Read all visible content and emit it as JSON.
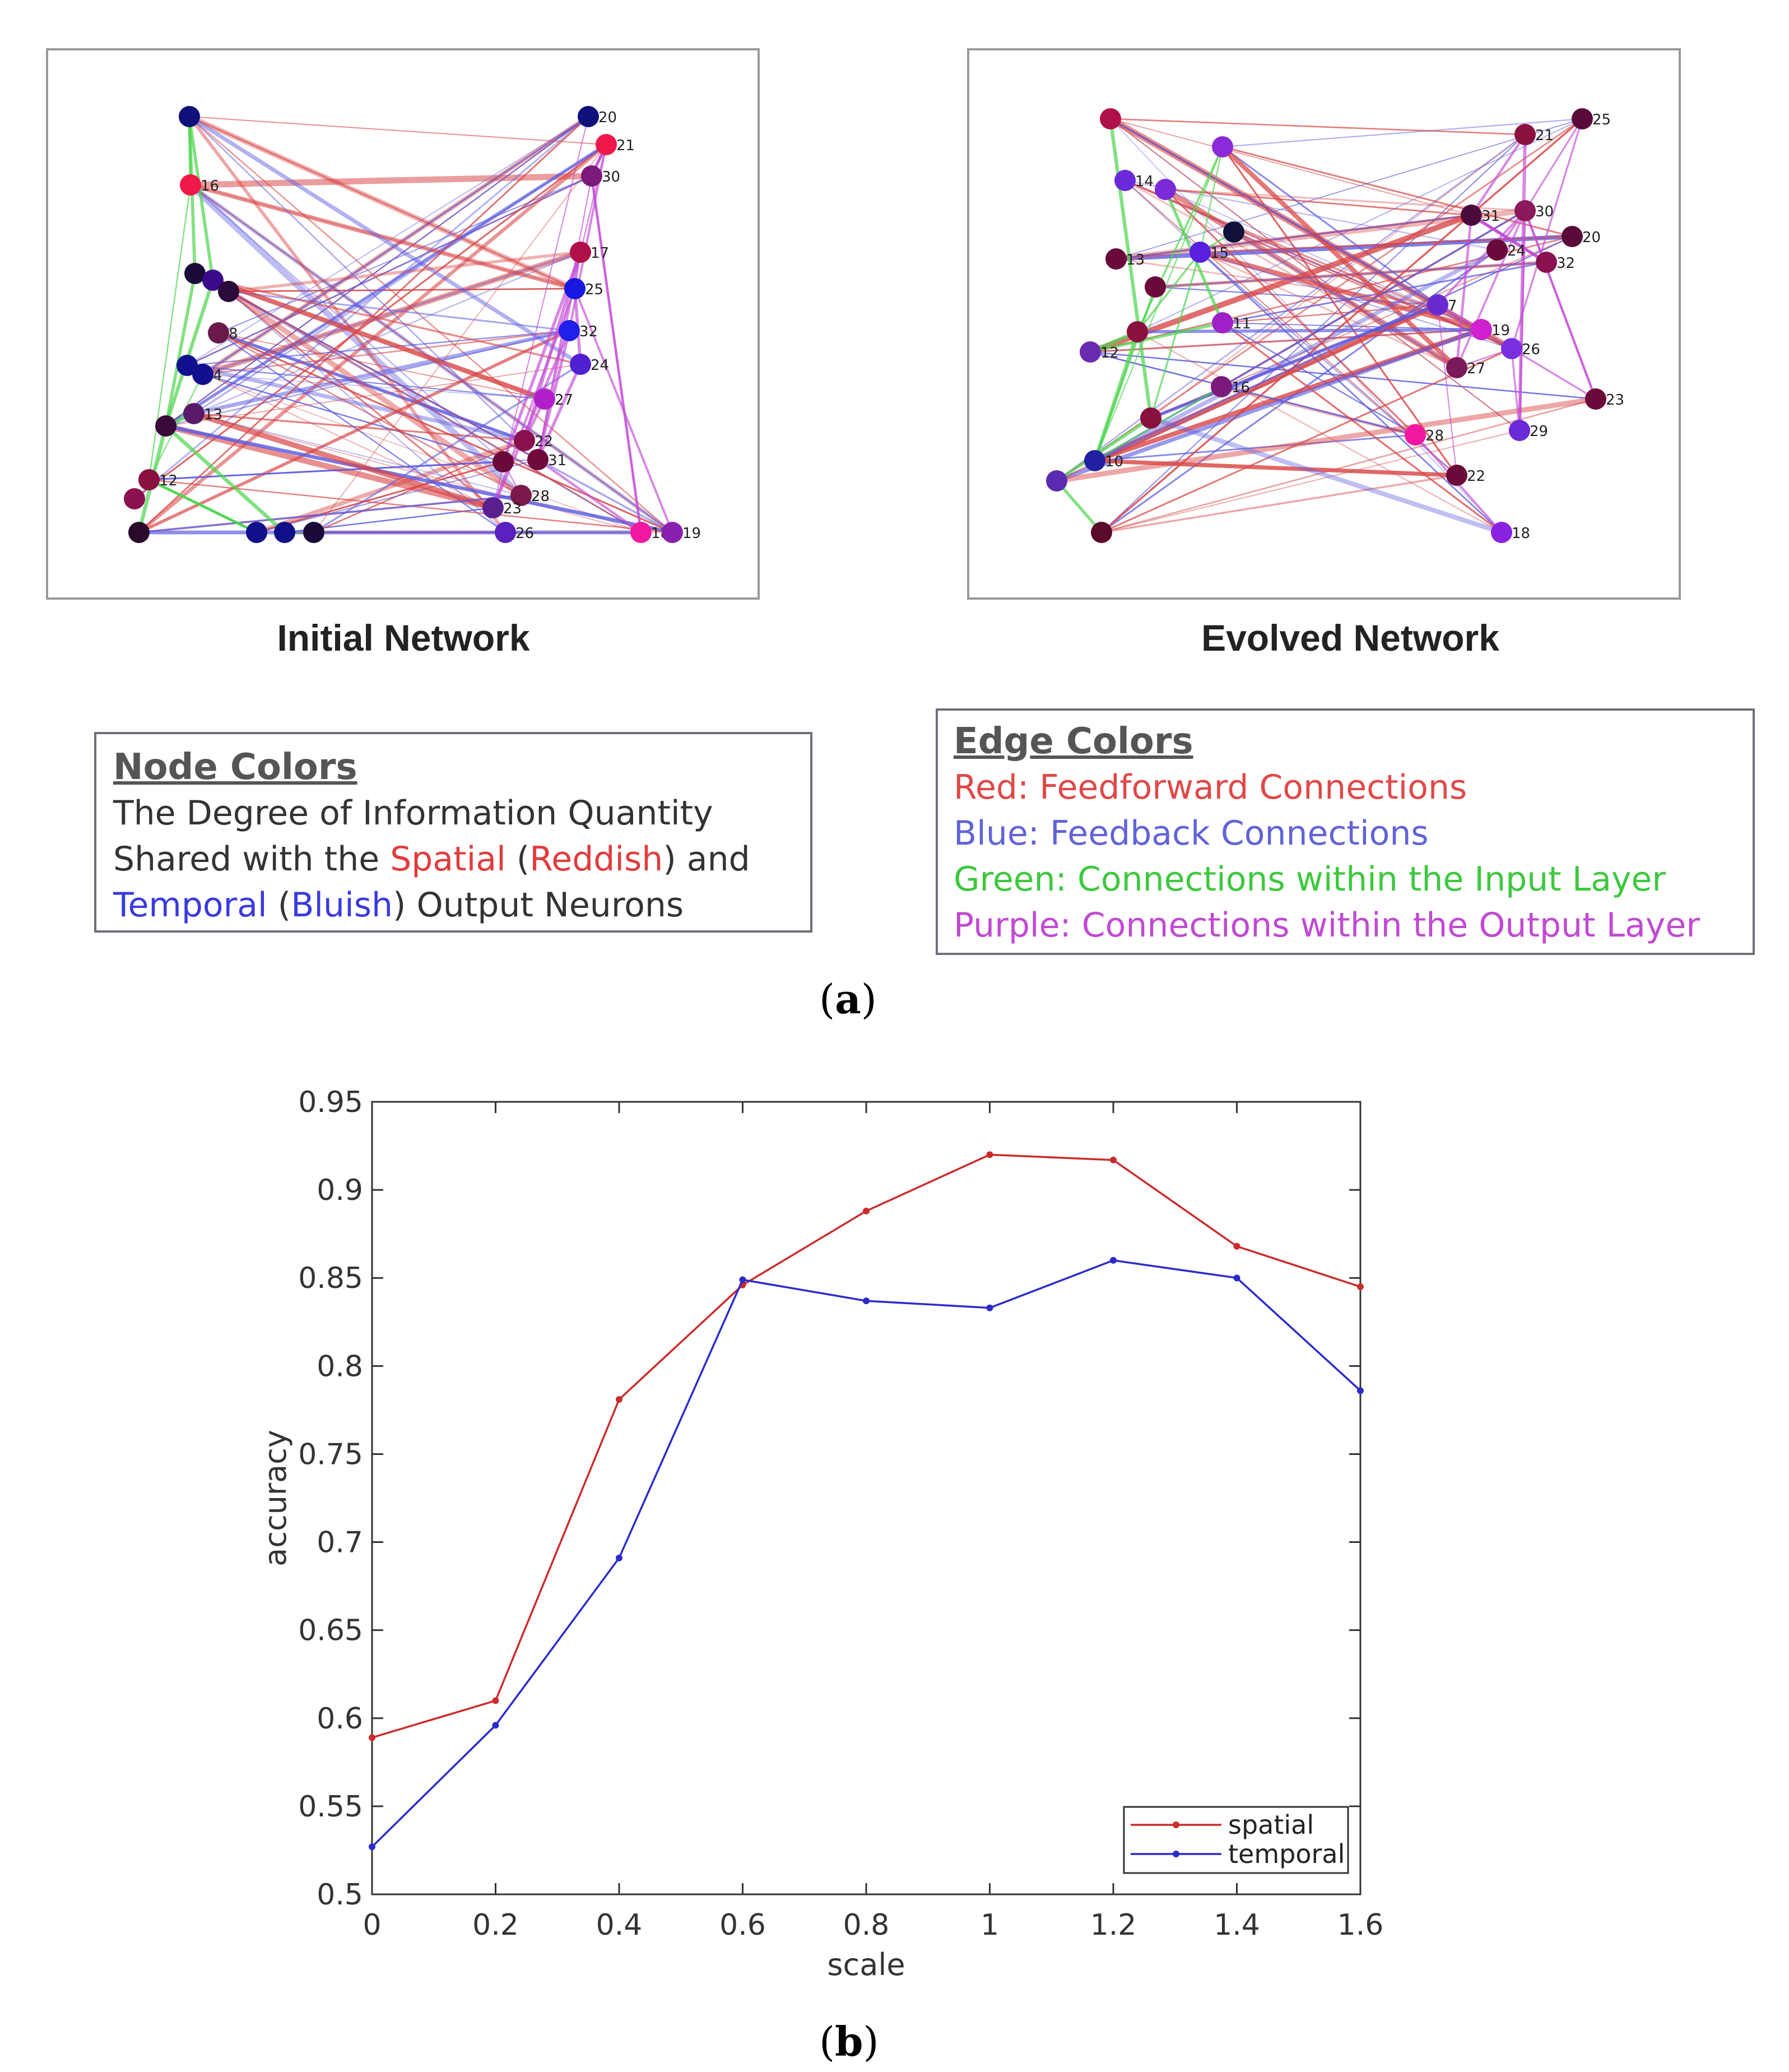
{
  "panel_a": {
    "initial_title": "Initial Network",
    "evolved_title": "Evolved Network",
    "label_open": "(",
    "label_letter": "a",
    "label_close": ")",
    "node_legend": {
      "heading": "Node Colors",
      "line1": "The Degree of Information Quantity",
      "line2_pre": "Shared with the ",
      "spatial": "Spatial",
      "line2_mid": " (",
      "reddish": "Reddish",
      "line2_post": ") and",
      "temporal": "Temporal",
      "line3_mid": " (",
      "bluish": "Bluish",
      "line3_post": ") Output Neurons"
    },
    "edge_legend": {
      "heading": "Edge Colors",
      "red": "Red: Feedforward Connections",
      "blue": "Blue: Feedback Connections",
      "green": "Green: Connections within the Input Layer",
      "purple": "Purple: Connections within the Output Layer"
    },
    "colors": {
      "feedforward": "#d94545",
      "feedback": "#5a5ae0",
      "input_layer": "#4dd44d",
      "output_layer": "#c24ad4",
      "spatial_text": "#e03c3c",
      "temporal_text": "#3a3ae0"
    },
    "initial_node_labels": [
      "20",
      "21",
      "16",
      "30",
      "17",
      "25",
      "32",
      "24",
      "27",
      "22",
      "31",
      "28",
      "23",
      "26",
      "18",
      "19",
      "12",
      "4",
      "13",
      "8"
    ],
    "evolved_node_labels": [
      "25",
      "21",
      "14",
      "30",
      "31",
      "20",
      "24",
      "32",
      "13",
      "7",
      "19",
      "26",
      "27",
      "11",
      "12",
      "23",
      "29",
      "28",
      "22",
      "10",
      "18",
      "16"
    ]
  },
  "panel_b": {
    "label_open": "(",
    "label_letter": "b",
    "label_close": ")"
  },
  "chart_data": {
    "type": "line",
    "xlabel": "scale",
    "ylabel": "accuracy",
    "xlim": [
      0,
      1.6
    ],
    "ylim": [
      0.5,
      0.95
    ],
    "x": [
      0,
      0.2,
      0.4,
      0.6,
      0.8,
      1.0,
      1.2,
      1.4,
      1.6
    ],
    "x_tick_labels": [
      "0",
      "0.2",
      "0.4",
      "0.6",
      "0.8",
      "1",
      "1.2",
      "1.4",
      "1.6"
    ],
    "y_tick_labels": [
      "0.5",
      "0.55",
      "0.6",
      "0.65",
      "0.7",
      "0.75",
      "0.8",
      "0.85",
      "0.9",
      "0.95"
    ],
    "y_ticks": [
      0.5,
      0.55,
      0.6,
      0.65,
      0.7,
      0.75,
      0.8,
      0.85,
      0.9,
      0.95
    ],
    "grid": false,
    "legend_position": "bottom-right",
    "series": [
      {
        "name": "spatial",
        "color": "#cc2b2b",
        "values": [
          0.589,
          0.61,
          0.781,
          0.846,
          0.888,
          0.92,
          0.917,
          0.868,
          0.845
        ]
      },
      {
        "name": "temporal",
        "color": "#2b2bcc",
        "values": [
          0.527,
          0.596,
          0.691,
          0.849,
          0.837,
          0.833,
          0.86,
          0.85,
          0.786
        ]
      }
    ]
  }
}
